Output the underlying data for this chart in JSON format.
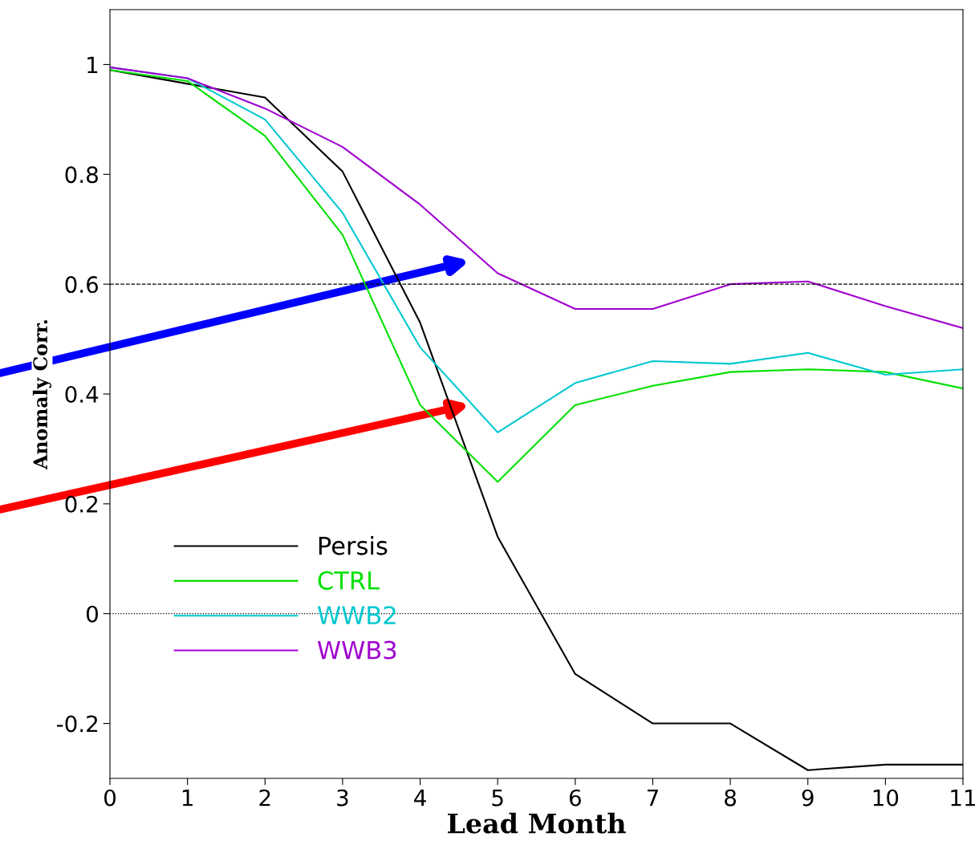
{
  "chart_data": {
    "type": "line",
    "xlabel": "Lead Month",
    "ylabel": "Anomaly Corr.",
    "x": [
      0,
      1,
      2,
      3,
      4,
      5,
      6,
      7,
      8,
      9,
      10,
      11
    ],
    "series": [
      {
        "name": "Persis",
        "color": "#000000",
        "values": [
          0.99,
          0.965,
          0.94,
          0.805,
          0.53,
          0.14,
          -0.11,
          -0.2,
          -0.2,
          -0.285,
          -0.275,
          -0.275
        ]
      },
      {
        "name": "CTRL",
        "color": "#00e000",
        "values": [
          0.99,
          0.97,
          0.87,
          0.69,
          0.38,
          0.24,
          0.38,
          0.415,
          0.44,
          0.445,
          0.44,
          0.41
        ]
      },
      {
        "name": "WWB2",
        "color": "#00c8d0",
        "values": [
          0.995,
          0.975,
          0.9,
          0.73,
          0.485,
          0.33,
          0.42,
          0.46,
          0.455,
          0.475,
          0.435,
          0.445
        ]
      },
      {
        "name": "WWB3",
        "color": "#a000d0",
        "values": [
          0.995,
          0.975,
          0.92,
          0.85,
          0.745,
          0.62,
          0.555,
          0.555,
          0.6,
          0.605,
          0.56,
          0.52
        ]
      }
    ],
    "xlim": [
      0,
      11
    ],
    "xticks": [
      0,
      1,
      2,
      3,
      4,
      5,
      6,
      7,
      8,
      9,
      10,
      11
    ],
    "ylim": [
      -0.3,
      1.1
    ],
    "yticks": [
      -0.2,
      0,
      0.2,
      0.4,
      0.6,
      0.8,
      1
    ],
    "ref_lines": [
      {
        "axis": "y",
        "value": 0.6,
        "color": "#000000",
        "line_style": "dashed"
      },
      {
        "axis": "y",
        "value": 0,
        "color": "#000000",
        "line_style": "dotted"
      }
    ],
    "grid": false,
    "legend": "bottom left",
    "marker": "none",
    "line_style": "solid"
  }
}
